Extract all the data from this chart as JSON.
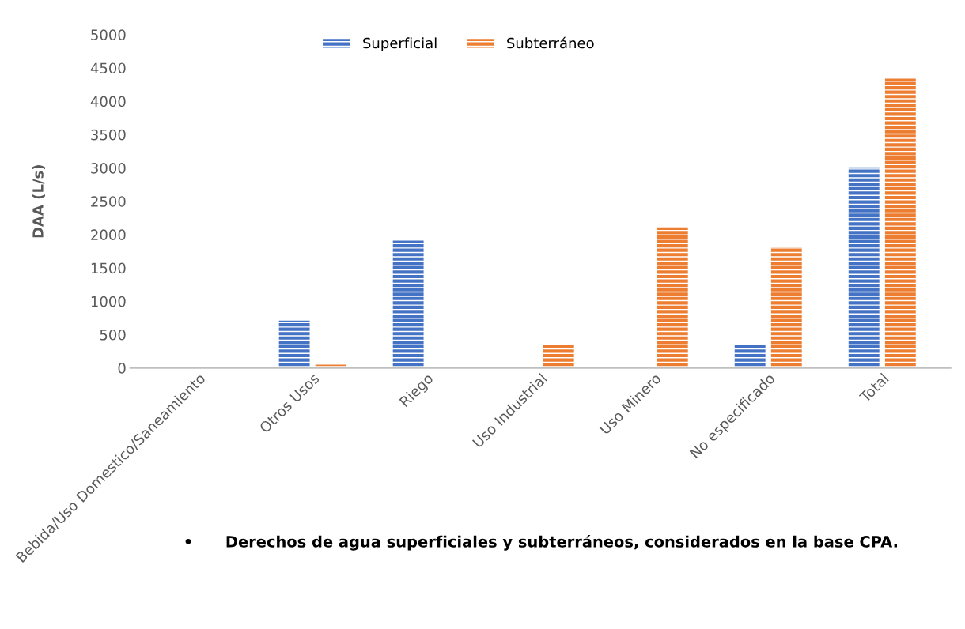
{
  "chart_data": {
    "type": "bar",
    "ylabel": "DAA (L/s)",
    "categories": [
      "Bebida/Uso Domestico/Saneamiento",
      "Otros Usos",
      "Riego",
      "Uso Industrial",
      "Uso Minero",
      "No especificado",
      "Total"
    ],
    "series": [
      {
        "name": "Superficial",
        "color": "#4472c4",
        "values": [
          0,
          710,
          1910,
          0,
          0,
          340,
          3010
        ]
      },
      {
        "name": "Subterráneo",
        "color": "#ed7d31",
        "values": [
          0,
          50,
          0,
          340,
          2110,
          1820,
          4340
        ]
      }
    ],
    "ylim": [
      0,
      5000
    ],
    "yticks": [
      0,
      500,
      1000,
      1500,
      2000,
      2500,
      3000,
      3500,
      4000,
      4500,
      5000
    ],
    "grid": false,
    "legend": "top",
    "annotations": [
      "•      Derechos de agua superficiales y subterráneos, considerados en la base CPA."
    ]
  }
}
